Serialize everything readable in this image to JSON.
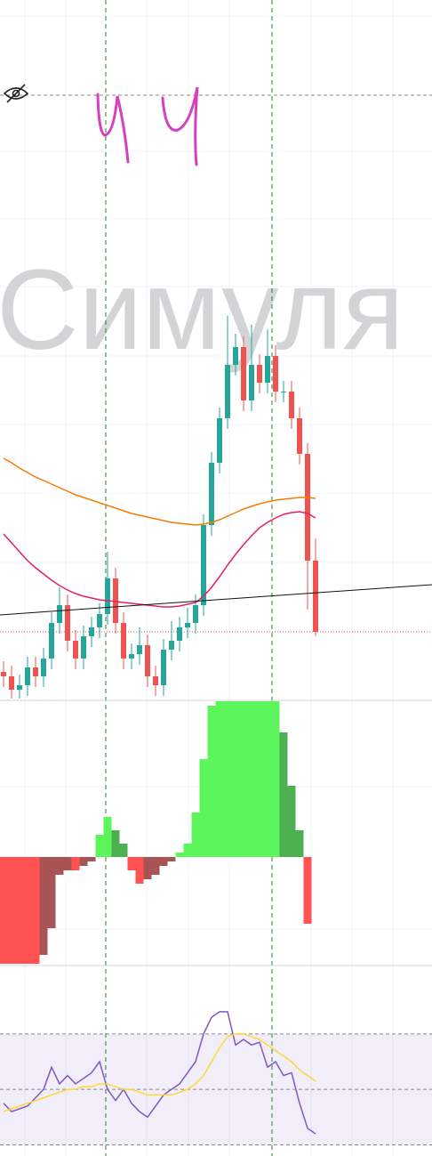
{
  "chart_data": [
    {
      "type": "candlestick",
      "watermark": "Симуля",
      "ylim": [
        0,
        785
      ],
      "up_color": "#26a69a",
      "down_color": "#ef5350",
      "open": [
        30,
        25,
        10,
        15,
        35,
        25,
        45,
        85,
        105,
        65,
        45,
        70,
        80,
        95,
        135,
        85,
        45,
        50,
        60,
        25,
        15,
        55,
        65,
        80,
        85,
        105,
        195,
        265,
        315,
        375,
        395,
        335,
        375,
        355,
        385,
        345,
        345,
        315,
        275,
        155
      ],
      "close": [
        25,
        10,
        15,
        35,
        25,
        45,
        85,
        105,
        65,
        45,
        70,
        80,
        95,
        135,
        85,
        45,
        50,
        60,
        25,
        15,
        55,
        65,
        80,
        85,
        105,
        195,
        265,
        315,
        375,
        395,
        335,
        375,
        355,
        385,
        345,
        345,
        315,
        275,
        155,
        75
      ],
      "high": [
        42,
        37,
        27,
        47,
        47,
        57,
        97,
        125,
        117,
        77,
        82,
        92,
        107,
        165,
        147,
        97,
        62,
        80,
        72,
        37,
        67,
        87,
        92,
        102,
        117,
        207,
        277,
        327,
        430,
        410,
        407,
        420,
        387,
        415,
        397,
        357,
        357,
        327,
        287,
        180
      ],
      "low": [
        13,
        0,
        0,
        3,
        13,
        13,
        33,
        73,
        53,
        33,
        33,
        58,
        68,
        83,
        73,
        33,
        33,
        38,
        13,
        3,
        3,
        43,
        53,
        68,
        73,
        93,
        183,
        253,
        303,
        363,
        323,
        323,
        343,
        343,
        333,
        333,
        303,
        263,
        100,
        70
      ],
      "series": [
        {
          "color": "#f57c00",
          "values": [
            270,
            265,
            259,
            254,
            249,
            245,
            241,
            237,
            233,
            229,
            226,
            223,
            220,
            217,
            214,
            211,
            208,
            206,
            204,
            202,
            200,
            198,
            197,
            196,
            195,
            196,
            198,
            201,
            205,
            209,
            213,
            216,
            219,
            221,
            223,
            224,
            225,
            226,
            226,
            225
          ]
        },
        {
          "color": "#e91e63",
          "values": [
            185,
            175,
            165,
            155,
            147,
            140,
            133,
            127,
            122,
            118,
            115,
            113,
            111,
            110,
            109,
            108,
            107,
            106,
            105,
            104,
            103,
            103,
            104,
            106,
            108,
            115,
            125,
            137,
            150,
            162,
            173,
            183,
            192,
            198,
            203,
            207,
            209,
            210,
            208,
            203
          ]
        }
      ]
    },
    {
      "type": "bar",
      "ylim": [
        -122,
        176
      ],
      "values": [
        -120,
        -120,
        -120,
        -120,
        -120,
        -110,
        -80,
        -20,
        -15,
        -15,
        -10,
        -5,
        25,
        45,
        30,
        15,
        -15,
        -30,
        -25,
        -20,
        -10,
        -5,
        5,
        15,
        50,
        110,
        170,
        175,
        175,
        175,
        175,
        175,
        175,
        175,
        175,
        140,
        80,
        30,
        -75,
        0
      ]
    },
    {
      "type": "line",
      "ylim": [
        26,
        94
      ],
      "yticks": [
        30,
        50,
        70
      ],
      "series": [
        {
          "color": "#7e57c2",
          "values": [
            45,
            42,
            43,
            44,
            47,
            50,
            58,
            52,
            55,
            52,
            54,
            56,
            60,
            50,
            46,
            50,
            45,
            42,
            40,
            44,
            48,
            50,
            52,
            56,
            60,
            70,
            76,
            78,
            78,
            66,
            68,
            66,
            67,
            58,
            60,
            55,
            56,
            45,
            36,
            34
          ]
        },
        {
          "color": "#fdd835",
          "values": [
            42,
            43,
            44,
            45,
            46,
            47,
            48,
            49,
            50,
            50,
            51,
            51,
            52,
            52,
            51,
            50,
            50,
            49,
            48,
            48,
            48,
            48,
            49,
            50,
            52,
            55,
            60,
            65,
            69,
            70,
            70,
            69,
            68,
            66,
            64,
            62,
            60,
            57,
            55,
            53
          ]
        }
      ]
    }
  ]
}
